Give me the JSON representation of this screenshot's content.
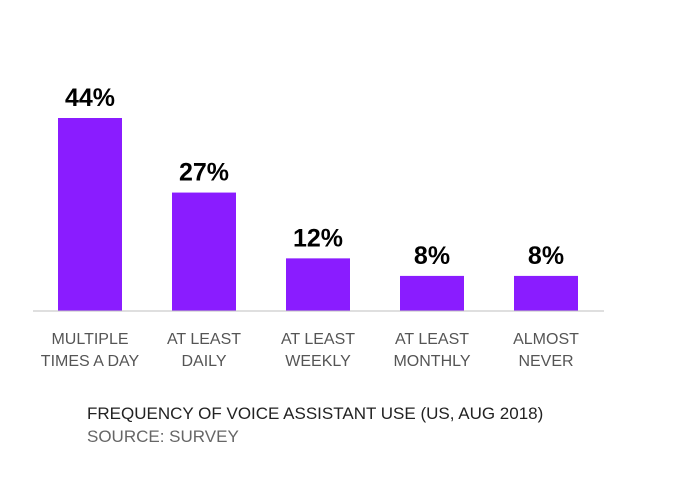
{
  "chart_data": {
    "type": "bar",
    "categories": [
      [
        "MULTIPLE",
        "TIMES A DAY"
      ],
      [
        "AT LEAST",
        "DAILY"
      ],
      [
        "AT LEAST",
        "WEEKLY"
      ],
      [
        "AT LEAST",
        "MONTHLY"
      ],
      [
        "ALMOST",
        "NEVER"
      ]
    ],
    "values": [
      44,
      27,
      12,
      8,
      8
    ],
    "value_labels": [
      "44%",
      "27%",
      "12%",
      "8%",
      "8%"
    ],
    "ylim": [
      0,
      44
    ],
    "grid": false,
    "bar_color": "#8a1cff"
  },
  "caption": {
    "title": "FREQUENCY OF VOICE ASSISTANT USE (US, AUG 2018)",
    "source": "SOURCE: SURVEY"
  }
}
